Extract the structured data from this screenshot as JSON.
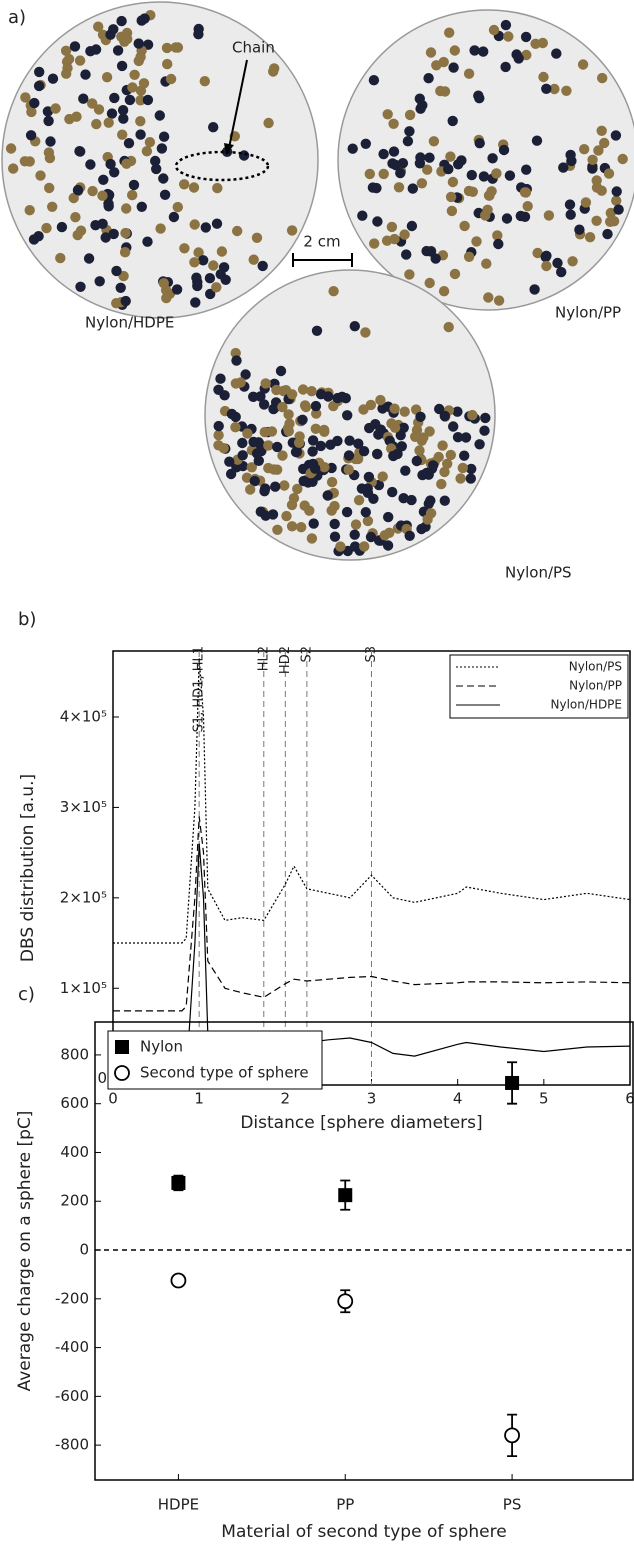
{
  "figure": {
    "panel_a": "a)",
    "panel_b": "b)",
    "panel_c": "c)",
    "chain": "Chain",
    "scale": "2 cm",
    "photos": [
      "Nylon/HDPE",
      "Nylon/PP",
      "Nylon/PS"
    ]
  },
  "chart_data": [
    {
      "type": "line",
      "xlabel": "Distance [sphere diameters]",
      "ylabel": "DBS distribution [a.u.]",
      "x": [
        0,
        0.8,
        0.85,
        0.95,
        1.0,
        1.05,
        1.1,
        1.3,
        1.5,
        1.75,
        2.0,
        2.1,
        2.25,
        2.5,
        2.75,
        3.0,
        3.25,
        3.5,
        4.0,
        4.1,
        4.5,
        5.0,
        5.5,
        6.0
      ],
      "series": [
        {
          "name": "Nylon/PS",
          "color": "#000",
          "linestyle": "dotted",
          "values": [
            150000,
            150000,
            155000,
            300000,
            465000,
            400000,
            210000,
            175000,
            178000,
            175000,
            215000,
            235000,
            210000,
            205000,
            200000,
            225000,
            200000,
            195000,
            205000,
            212000,
            205000,
            198000,
            205000,
            198000
          ]
        },
        {
          "name": "Nylon/PP",
          "color": "#000",
          "linestyle": "dashed",
          "values": [
            75000,
            75000,
            80000,
            200000,
            290000,
            250000,
            130000,
            100000,
            95000,
            90000,
            105000,
            110000,
            108000,
            110000,
            112000,
            113000,
            108000,
            104000,
            106000,
            107000,
            107000,
            106000,
            107000,
            106000
          ]
        },
        {
          "name": "Nylon/HDPE",
          "color": "#000",
          "linestyle": "solid",
          "values": [
            0,
            0,
            2000,
            150000,
            260000,
            200000,
            50000,
            12000,
            10000,
            12000,
            35000,
            42000,
            40000,
            43000,
            45000,
            40000,
            28000,
            25000,
            38000,
            40000,
            35000,
            30000,
            35000,
            36000
          ]
        }
      ],
      "markers": [
        {
          "x": 1,
          "label": "S1, HD1, HL1"
        },
        {
          "x": 1.75,
          "label": "HL2"
        },
        {
          "x": 2,
          "label": "HD2"
        },
        {
          "x": 2.25,
          "label": "S2"
        },
        {
          "x": 3,
          "label": "S3"
        }
      ],
      "xlim": [
        0,
        6
      ],
      "xticks": [
        0,
        1,
        2,
        3,
        4,
        5,
        6
      ],
      "ylim": [
        -7000,
        473000
      ],
      "yticks": [
        0,
        {
          "value": 100000,
          "label": "1×10⁵"
        },
        {
          "value": 200000,
          "label": "2×10⁵"
        },
        {
          "value": 300000,
          "label": "3×10⁵"
        },
        {
          "value": 400000,
          "label": "4×10⁵"
        }
      ],
      "legend": "upper right"
    },
    {
      "type": "scatter",
      "xlabel": "Material of second type of sphere",
      "ylabel": "Average charge on a sphere [pC]",
      "categories": [
        "HDPE",
        "PP",
        "PS"
      ],
      "series": [
        {
          "name": "Nylon",
          "color": "#000",
          "marker": "filled-square",
          "values": [
            275,
            225,
            685
          ],
          "errors": [
            30,
            60,
            85
          ]
        },
        {
          "name": "Second type of sphere",
          "color": "#000",
          "marker": "open-circle",
          "values": [
            -125,
            -210,
            -760
          ],
          "errors": [
            15,
            45,
            85
          ]
        }
      ],
      "hline": 0,
      "ylim": [
        -943,
        935
      ],
      "yticks": [
        -800,
        -600,
        -400,
        -200,
        0,
        200,
        400,
        600,
        800
      ],
      "legend": "upper left"
    }
  ]
}
